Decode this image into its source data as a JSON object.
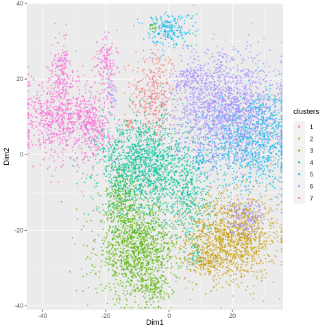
{
  "chart_data": {
    "type": "scatter",
    "xlabel": "Dim1",
    "ylabel": "Dim2",
    "xlim": [
      -45,
      36
    ],
    "ylim": [
      -41,
      40
    ],
    "x_ticks": [
      -40,
      -20,
      0,
      20
    ],
    "y_ticks": [
      -40,
      -20,
      0,
      20,
      40
    ],
    "x_tick_labels": [
      "-40",
      "-20",
      "0",
      "20"
    ],
    "y_tick_labels": [
      "-40",
      "-20",
      "0",
      "20",
      "40"
    ],
    "grid": true,
    "legend": {
      "title": "clusters",
      "placement": "right",
      "entries": [
        "1",
        "2",
        "3",
        "4",
        "5",
        "6",
        "7"
      ]
    },
    "colors": {
      "1": "#F8766D",
      "2": "#C49A00",
      "3": "#53B400",
      "4": "#00C094",
      "5": "#00B6EB",
      "6": "#A58AFF",
      "7": "#FB61D7"
    },
    "panel_background": "#EBEBEB",
    "series": [
      {
        "name": "1",
        "regions": [
          [
            -5,
            16,
            4.5,
            8,
            350
          ],
          [
            -13,
            8,
            1,
            1,
            25
          ]
        ]
      },
      {
        "name": "2",
        "regions": [
          [
            20,
            -22,
            9,
            7,
            1300
          ],
          [
            11,
            -28,
            3,
            2,
            150
          ]
        ]
      },
      {
        "name": "3",
        "regions": [
          [
            -15,
            -12,
            3,
            6,
            250
          ],
          [
            -10,
            -25,
            8,
            8,
            1300
          ],
          [
            -5,
            -35,
            3,
            2,
            100
          ],
          [
            -5,
            34,
            1,
            1,
            15
          ]
        ]
      },
      {
        "name": "4",
        "regions": [
          [
            -8,
            -3,
            9,
            8,
            1500
          ],
          [
            6,
            -10,
            5,
            8,
            400
          ],
          [
            8,
            -26,
            1,
            2,
            30
          ]
        ]
      },
      {
        "name": "5",
        "regions": [
          [
            0,
            33,
            5,
            3,
            220
          ],
          [
            25,
            3,
            9,
            8,
            900
          ],
          [
            31,
            8,
            3,
            6,
            120
          ],
          [
            10,
            -1,
            2,
            2,
            40
          ]
        ]
      },
      {
        "name": "6",
        "regions": [
          [
            18,
            12,
            11,
            9,
            1800
          ],
          [
            7,
            20,
            3,
            2,
            120
          ],
          [
            24,
            -16,
            4,
            3,
            180
          ],
          [
            -18,
            16,
            1,
            3,
            40
          ]
        ]
      },
      {
        "name": "7",
        "regions": [
          [
            -35,
            10,
            7,
            7,
            700
          ],
          [
            -24,
            8,
            4,
            6,
            350
          ],
          [
            -34,
            23,
            2,
            5,
            150
          ],
          [
            -20,
            24,
            2,
            5,
            150
          ]
        ]
      }
    ]
  }
}
